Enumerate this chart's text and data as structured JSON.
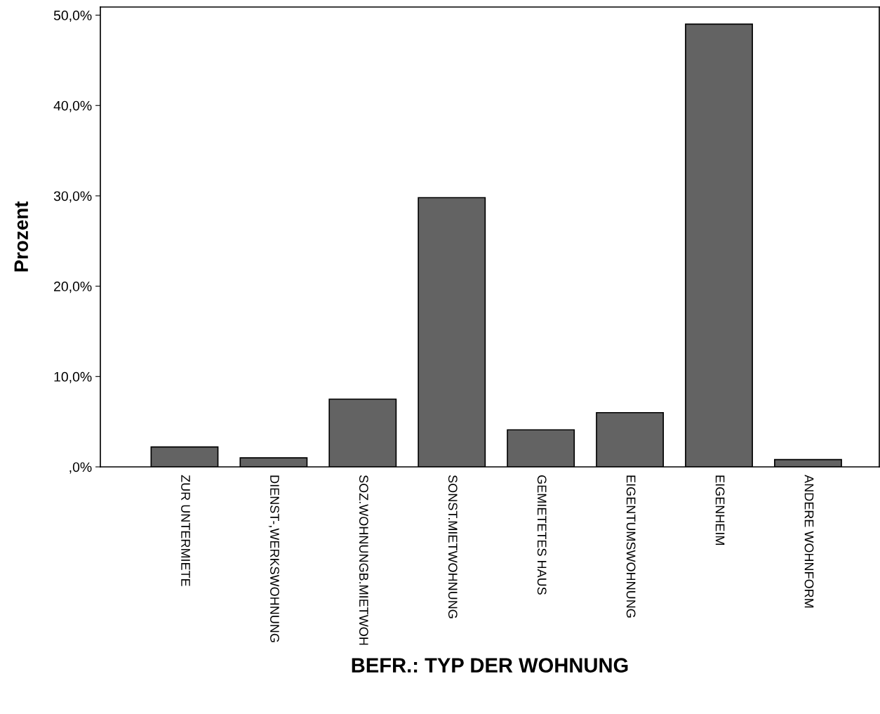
{
  "chart_data": {
    "type": "bar",
    "xlabel": "BEFR.: TYP DER WOHNUNG",
    "ylabel": "Prozent",
    "categories": [
      "ZUR UNTERMIETE",
      "DIENST-,WERKSWOHNUNG",
      "SOZ.WOHNUNGB.MIETWOH",
      "SONST.MIETWOHNUNG",
      "GEMIETETES HAUS",
      "EIGENTUMSWOHNUNG",
      "EIGENHEIM",
      "ANDERE WOHNFORM"
    ],
    "values": [
      2.2,
      1.0,
      7.5,
      29.8,
      4.1,
      6.0,
      49.0,
      0.8
    ],
    "color": "#636363",
    "ylim": [
      0,
      50.9
    ],
    "yticks": [
      {
        "value": 0,
        "label": ",0%"
      },
      {
        "value": 10,
        "label": "10,0%"
      },
      {
        "value": 20,
        "label": "20,0%"
      },
      {
        "value": 30,
        "label": "30,0%"
      },
      {
        "value": 40,
        "label": "40,0%"
      },
      {
        "value": 50,
        "label": "50,0%"
      }
    ],
    "grid": false
  }
}
